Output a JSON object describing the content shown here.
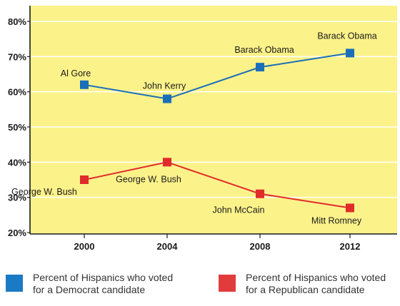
{
  "chart_data": {
    "type": "line",
    "title": "",
    "xlabel": "",
    "ylabel": "",
    "categories": [
      "2000",
      "2004",
      "2008",
      "2012"
    ],
    "ylim": [
      20,
      82
    ],
    "yticks": [
      "20%",
      "30%",
      "40%",
      "50%",
      "60%",
      "70%",
      "80%"
    ],
    "ytick_values": [
      20,
      30,
      40,
      50,
      60,
      70,
      80
    ],
    "grid": true,
    "legend": "bottom",
    "plot_background": "#fcf28a",
    "grid_color": "#ffffff",
    "series": [
      {
        "legend_text": "Percent of Hispanics who voted for a Democrat candidate",
        "color": "#1a6fb8",
        "values": [
          62,
          58,
          67,
          71
        ],
        "labels": [
          "Al Gore",
          "John Kerry",
          "Barack Obama",
          "Barack Obama"
        ]
      },
      {
        "legend_text": "Percent of Hispanics who voted for a Republican candidate",
        "color": "#e02b2b",
        "values": [
          35,
          40,
          31,
          27
        ],
        "labels": [
          "George W. Bush",
          "George W. Bush",
          "John McCain",
          "Mitt Romney"
        ]
      }
    ]
  },
  "legend": {
    "democrat": {
      "line1": "Percent of Hispanics who voted",
      "line2": "for a Democrat candidate",
      "color": "#1a7ac4"
    },
    "republican": {
      "line1": "Percent of Hispanics who voted",
      "line2": "for a Republican candidate",
      "color": "#e23b3b"
    }
  }
}
